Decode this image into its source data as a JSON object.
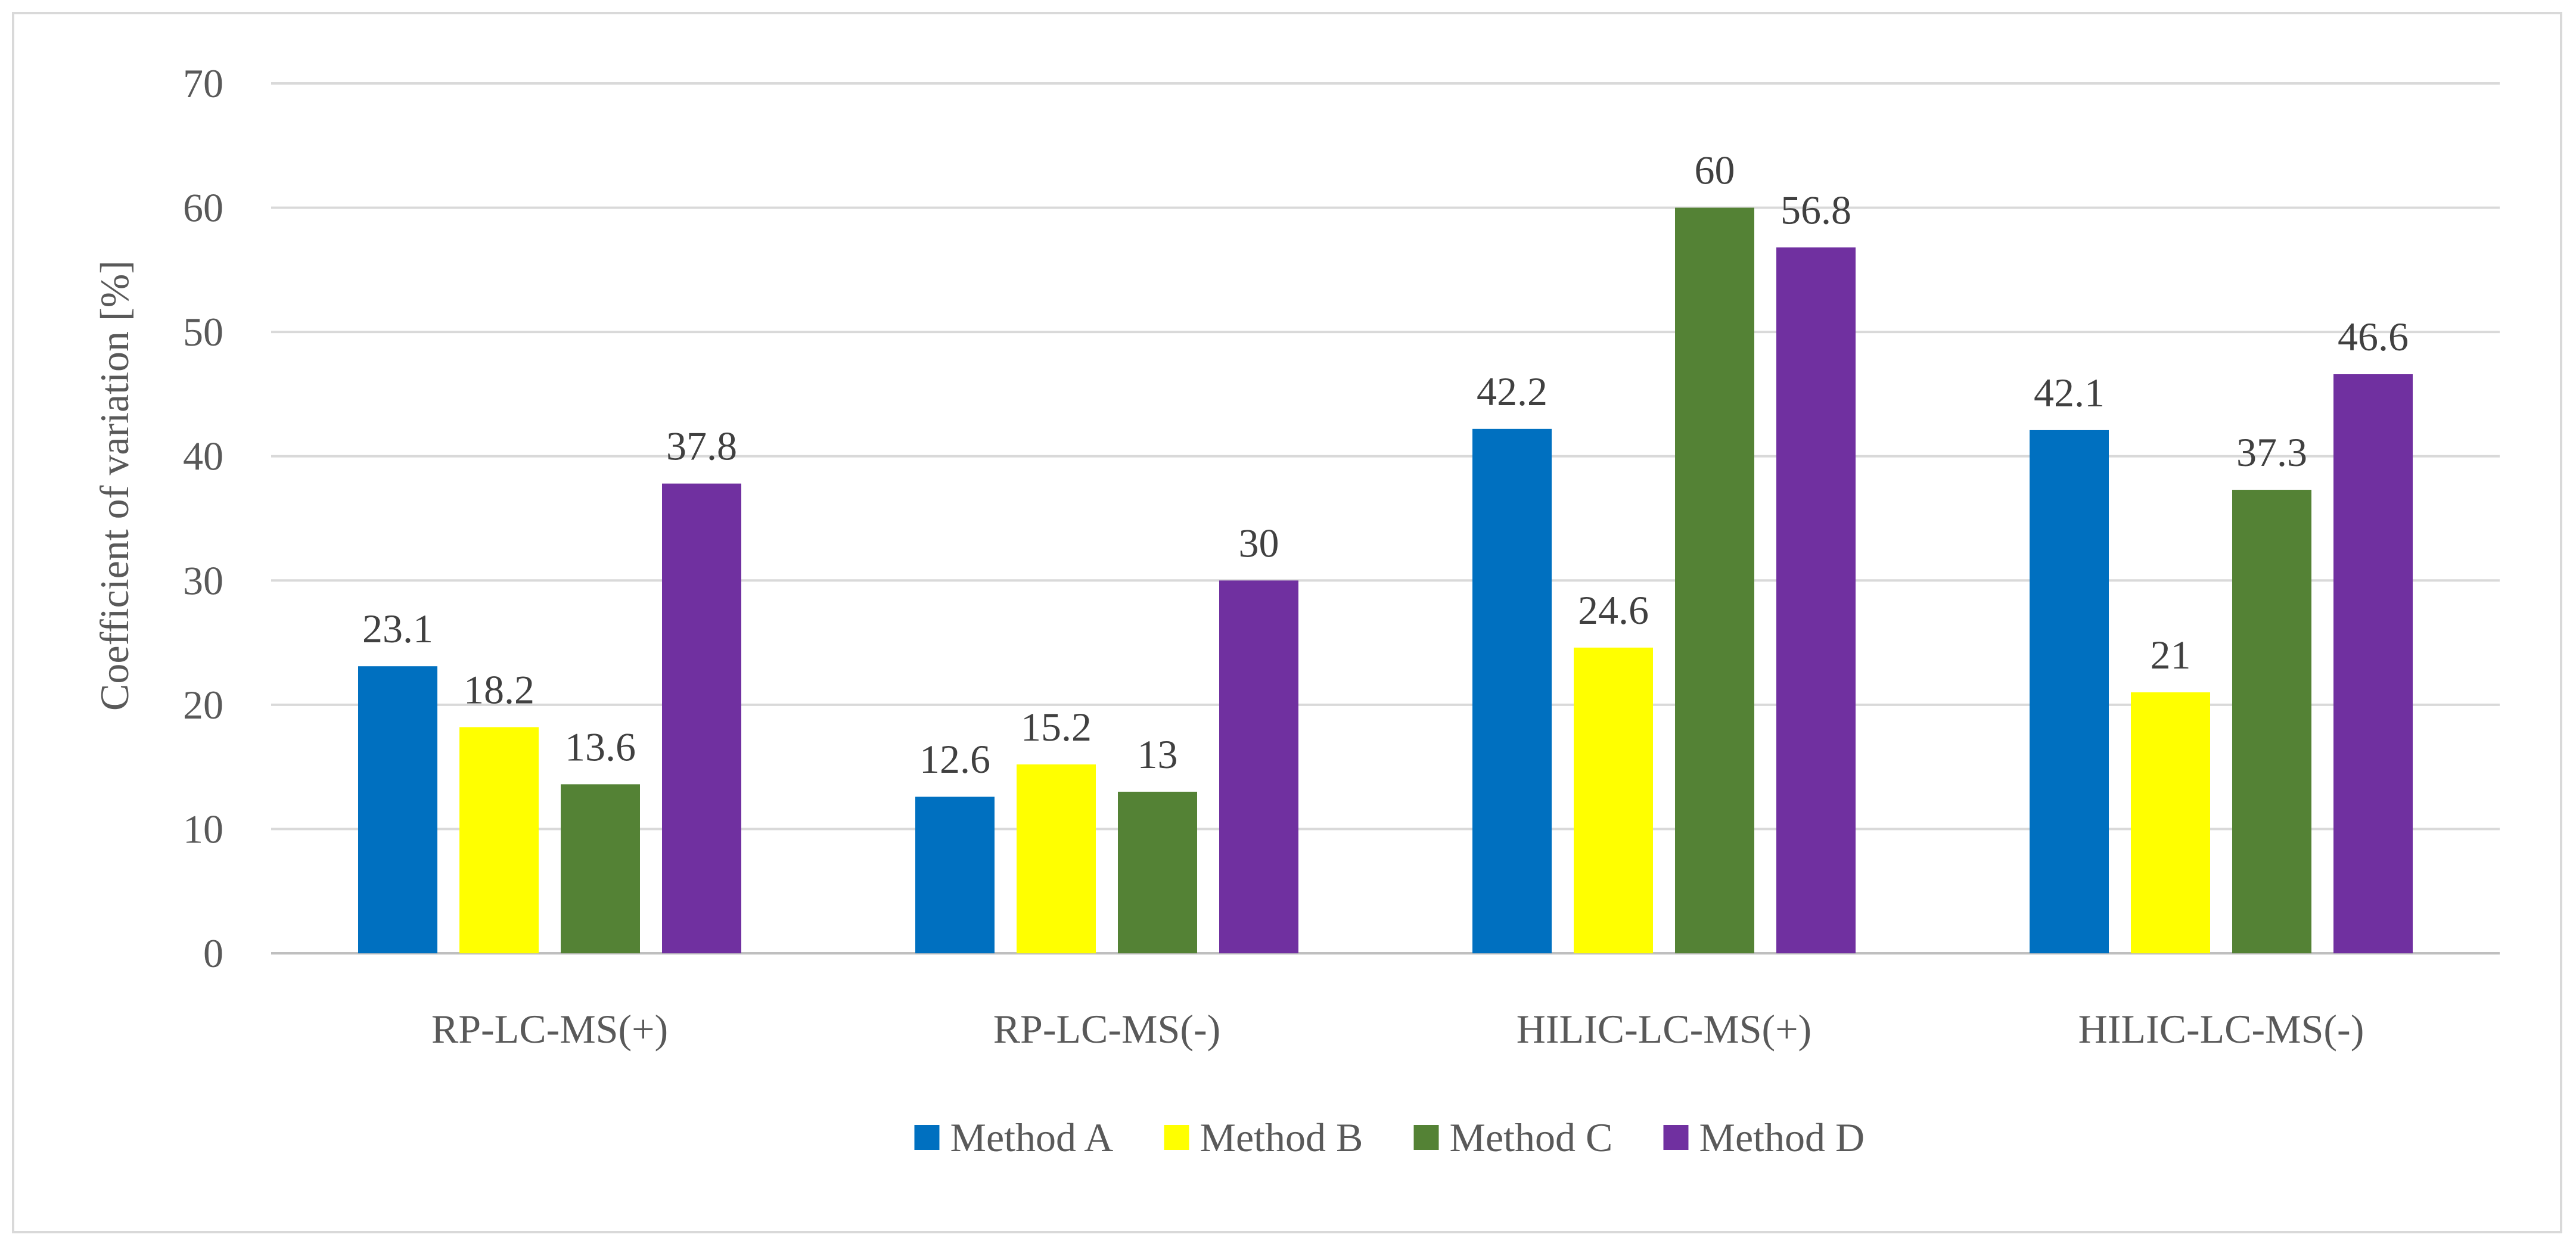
{
  "chart_data": {
    "type": "bar",
    "title": "",
    "xlabel": "",
    "ylabel": "Coefficient of variation [%]",
    "ylim": [
      0,
      70
    ],
    "yticks": [
      0,
      10,
      20,
      30,
      40,
      50,
      60,
      70
    ],
    "grid": true,
    "legend_position": "bottom",
    "categories": [
      "RP-LC-MS(+)",
      "RP-LC-MS(-)",
      "HILIC-LC-MS(+)",
      "HILIC-LC-MS(-)"
    ],
    "series": [
      {
        "name": "Method A",
        "color": "#0070c0",
        "values": [
          23.1,
          12.6,
          42.2,
          42.1
        ]
      },
      {
        "name": "Method B",
        "color": "#ffff00",
        "values": [
          18.2,
          15.2,
          24.6,
          21
        ]
      },
      {
        "name": "Method C",
        "color": "#548235",
        "values": [
          13.6,
          13,
          60,
          37.3
        ]
      },
      {
        "name": "Method D",
        "color": "#7030a0",
        "values": [
          37.8,
          30,
          56.8,
          46.6
        ]
      }
    ],
    "gridline_color": "#d9d9d9"
  }
}
